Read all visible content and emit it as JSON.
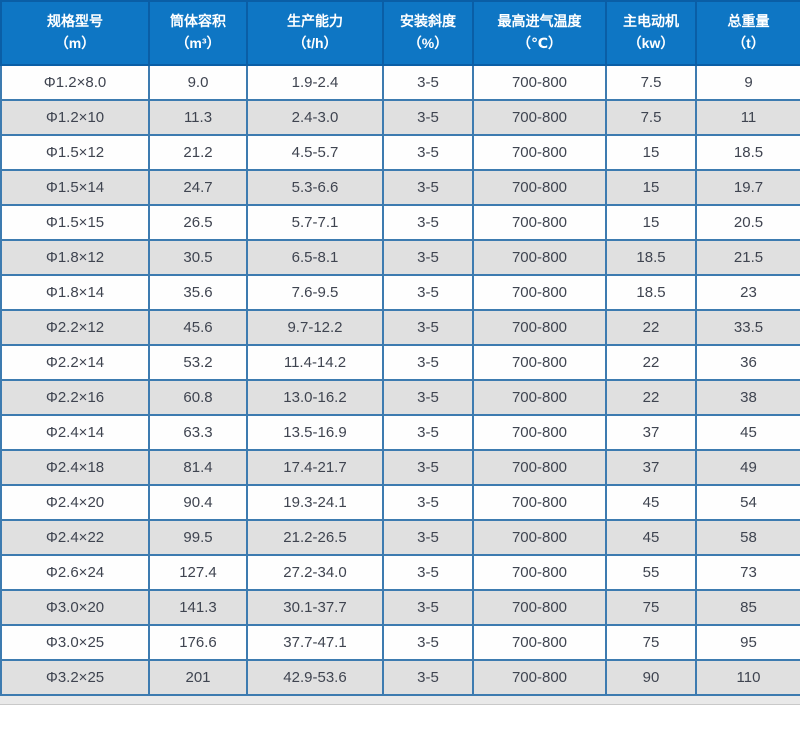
{
  "table": {
    "columns": [
      {
        "label": "规格型号",
        "unit": "（m）"
      },
      {
        "label": "筒体容积",
        "unit": "（m³）"
      },
      {
        "label": "生产能力",
        "unit": "（t/h）"
      },
      {
        "label": "安装斜度",
        "unit": "（%）"
      },
      {
        "label": "最高进气温度",
        "unit": "（℃）"
      },
      {
        "label": "主电动机",
        "unit": "（kw）"
      },
      {
        "label": "总重量",
        "unit": "（t）"
      }
    ],
    "rows": [
      [
        "Φ1.2×8.0",
        "9.0",
        "1.9-2.4",
        "3-5",
        "700-800",
        "7.5",
        "9"
      ],
      [
        "Φ1.2×10",
        "11.3",
        "2.4-3.0",
        "3-5",
        "700-800",
        "7.5",
        "11"
      ],
      [
        "Φ1.5×12",
        "21.2",
        "4.5-5.7",
        "3-5",
        "700-800",
        "15",
        "18.5"
      ],
      [
        "Φ1.5×14",
        "24.7",
        "5.3-6.6",
        "3-5",
        "700-800",
        "15",
        "19.7"
      ],
      [
        "Φ1.5×15",
        "26.5",
        "5.7-7.1",
        "3-5",
        "700-800",
        "15",
        "20.5"
      ],
      [
        "Φ1.8×12",
        "30.5",
        "6.5-8.1",
        "3-5",
        "700-800",
        "18.5",
        "21.5"
      ],
      [
        "Φ1.8×14",
        "35.6",
        "7.6-9.5",
        "3-5",
        "700-800",
        "18.5",
        "23"
      ],
      [
        "Φ2.2×12",
        "45.6",
        "9.7-12.2",
        "3-5",
        "700-800",
        "22",
        "33.5"
      ],
      [
        "Φ2.2×14",
        "53.2",
        "11.4-14.2",
        "3-5",
        "700-800",
        "22",
        "36"
      ],
      [
        "Φ2.2×16",
        "60.8",
        "13.0-16.2",
        "3-5",
        "700-800",
        "22",
        "38"
      ],
      [
        "Φ2.4×14",
        "63.3",
        "13.5-16.9",
        "3-5",
        "700-800",
        "37",
        "45"
      ],
      [
        "Φ2.4×18",
        "81.4",
        "17.4-21.7",
        "3-5",
        "700-800",
        "37",
        "49"
      ],
      [
        "Φ2.4×20",
        "90.4",
        "19.3-24.1",
        "3-5",
        "700-800",
        "45",
        "54"
      ],
      [
        "Φ2.4×22",
        "99.5",
        "21.2-26.5",
        "3-5",
        "700-800",
        "45",
        "58"
      ],
      [
        "Φ2.6×24",
        "127.4",
        "27.2-34.0",
        "3-5",
        "700-800",
        "55",
        "73"
      ],
      [
        "Φ3.0×20",
        "141.3",
        "30.1-37.7",
        "3-5",
        "700-800",
        "75",
        "85"
      ],
      [
        "Φ3.0×25",
        "176.6",
        "37.7-47.1",
        "3-5",
        "700-800",
        "75",
        "95"
      ],
      [
        "Φ3.2×25",
        "201",
        "42.9-53.6",
        "3-5",
        "700-800",
        "90",
        "110"
      ]
    ]
  },
  "colors": {
    "header_bg": "#0e76c4",
    "header_text": "#ffffff",
    "header_border": "#0a5ea6",
    "body_border": "#3d7bb0",
    "row_bg": "#fefefe",
    "row_alt_bg": "#e0e0e0",
    "cell_text": "#3f4450",
    "footer_strip": "#e9e9e9"
  }
}
